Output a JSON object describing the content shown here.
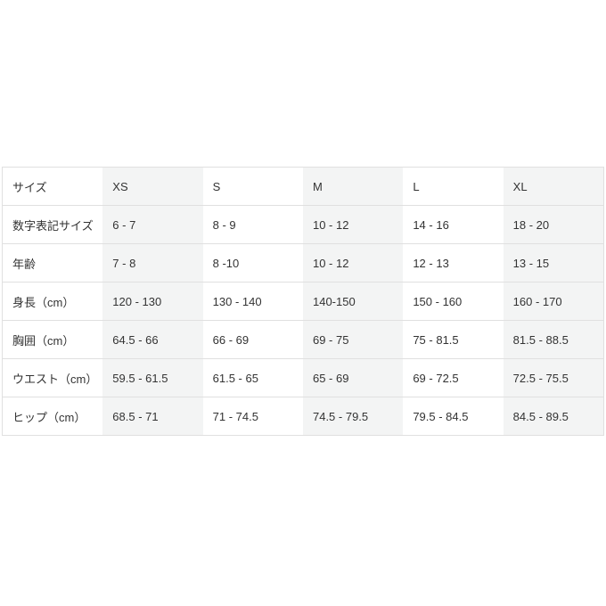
{
  "size_chart": {
    "colors": {
      "background": "#ffffff",
      "stripe": "#f3f4f4",
      "border": "#e0e0e0",
      "text": "#333333"
    },
    "header": {
      "label": "サイズ",
      "values": [
        "XS",
        "S",
        "M",
        "L",
        "XL"
      ]
    },
    "rows": [
      {
        "label": "数字表記サイズ",
        "values": [
          "6 - 7",
          "8 - 9",
          "10 - 12",
          "14 - 16",
          "18 - 20"
        ]
      },
      {
        "label": "年齢",
        "values": [
          "7 - 8",
          "8 -10",
          "10 - 12",
          "12 - 13",
          "13 - 15"
        ]
      },
      {
        "label": "身長（cm）",
        "values": [
          "120 - 130",
          "130 - 140",
          "140-150",
          "150 - 160",
          "160 - 170"
        ]
      },
      {
        "label": "胸囲（cm）",
        "values": [
          "64.5 - 66",
          "66 - 69",
          "69 - 75",
          "75 - 81.5",
          "81.5 - 88.5"
        ]
      },
      {
        "label": "ウエスト（cm）",
        "values": [
          "59.5 - 61.5",
          "61.5 - 65",
          "65 - 69",
          "69 - 72.5",
          "72.5 - 75.5"
        ]
      },
      {
        "label": "ヒップ（cm）",
        "values": [
          "68.5 - 71",
          "71 - 74.5",
          "74.5 - 79.5",
          "79.5 - 84.5",
          "84.5 - 89.5"
        ]
      }
    ]
  }
}
